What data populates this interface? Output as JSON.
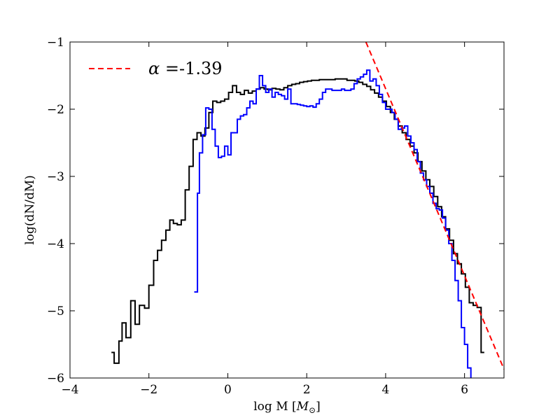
{
  "chart_data": {
    "type": "line",
    "xlabel": "log M [M⊙]",
    "xlabel_plain": "log M [",
    "xlabel_math": "M",
    "xlabel_sub": "⊙",
    "xlabel_close": "]",
    "ylabel": "log(dN/dM)",
    "xlim": [
      -4,
      7
    ],
    "ylim": [
      -6,
      -1
    ],
    "xticks": [
      -4,
      -2,
      0,
      2,
      4,
      6
    ],
    "xtick_labels": [
      "−4",
      "−2",
      "0",
      "2",
      "4",
      "6"
    ],
    "yticks": [
      -6,
      -5,
      -4,
      -3,
      -2,
      -1
    ],
    "ytick_labels": [
      "−6",
      "−5",
      "−4",
      "−3",
      "−2",
      "−1"
    ],
    "grid": false,
    "legend_position": "top-left",
    "legend": [
      {
        "label_symbol": "α",
        "label_value": " =-1.39",
        "style": "dashed",
        "color": "#ff0000"
      }
    ],
    "series": [
      {
        "style": "steps",
        "color": "#000000",
        "points": [
          [
            -2.95,
            -5.62
          ],
          [
            -2.88,
            -5.78
          ],
          [
            -2.76,
            -5.45
          ],
          [
            -2.68,
            -5.18
          ],
          [
            -2.58,
            -5.4
          ],
          [
            -2.46,
            -4.85
          ],
          [
            -2.35,
            -5.2
          ],
          [
            -2.24,
            -4.92
          ],
          [
            -2.11,
            -4.96
          ],
          [
            -2.0,
            -4.62
          ],
          [
            -1.88,
            -4.25
          ],
          [
            -1.78,
            -4.1
          ],
          [
            -1.68,
            -3.95
          ],
          [
            -1.57,
            -3.8
          ],
          [
            -1.47,
            -3.65
          ],
          [
            -1.38,
            -3.7
          ],
          [
            -1.28,
            -3.72
          ],
          [
            -1.18,
            -3.65
          ],
          [
            -1.08,
            -3.2
          ],
          [
            -0.98,
            -2.85
          ],
          [
            -0.88,
            -2.45
          ],
          [
            -0.78,
            -2.35
          ],
          [
            -0.68,
            -2.4
          ],
          [
            -0.58,
            -2.28
          ],
          [
            -0.48,
            -2.05
          ],
          [
            -0.38,
            -1.88
          ],
          [
            -0.28,
            -1.9
          ],
          [
            -0.18,
            -1.88
          ],
          [
            -0.08,
            -1.85
          ],
          [
            0.02,
            -1.75
          ],
          [
            0.12,
            -1.65
          ],
          [
            0.22,
            -1.75
          ],
          [
            0.32,
            -1.78
          ],
          [
            0.42,
            -1.72
          ],
          [
            0.52,
            -1.76
          ],
          [
            0.62,
            -1.73
          ],
          [
            0.72,
            -1.7
          ],
          [
            0.82,
            -1.68
          ],
          [
            0.92,
            -1.7
          ],
          [
            1.02,
            -1.71
          ],
          [
            1.12,
            -1.69
          ],
          [
            1.22,
            -1.7
          ],
          [
            1.32,
            -1.71
          ],
          [
            1.42,
            -1.68
          ],
          [
            1.52,
            -1.65
          ],
          [
            1.62,
            -1.63
          ],
          [
            1.72,
            -1.62
          ],
          [
            1.82,
            -1.6
          ],
          [
            1.92,
            -1.59
          ],
          [
            2.02,
            -1.58
          ],
          [
            2.12,
            -1.57
          ],
          [
            2.22,
            -1.57
          ],
          [
            2.32,
            -1.56
          ],
          [
            2.42,
            -1.56
          ],
          [
            2.52,
            -1.56
          ],
          [
            2.62,
            -1.56
          ],
          [
            2.72,
            -1.55
          ],
          [
            2.82,
            -1.55
          ],
          [
            2.92,
            -1.55
          ],
          [
            3.02,
            -1.57
          ],
          [
            3.12,
            -1.57
          ],
          [
            3.22,
            -1.58
          ],
          [
            3.32,
            -1.6
          ],
          [
            3.42,
            -1.63
          ],
          [
            3.52,
            -1.66
          ],
          [
            3.62,
            -1.71
          ],
          [
            3.72,
            -1.76
          ],
          [
            3.82,
            -1.82
          ],
          [
            3.92,
            -1.88
          ],
          [
            4.02,
            -1.96
          ],
          [
            4.12,
            -2.05
          ],
          [
            4.22,
            -2.15
          ],
          [
            4.32,
            -2.25
          ],
          [
            4.42,
            -2.35
          ],
          [
            4.52,
            -2.45
          ],
          [
            4.62,
            -2.55
          ],
          [
            4.72,
            -2.65
          ],
          [
            4.82,
            -2.78
          ],
          [
            4.92,
            -2.92
          ],
          [
            5.02,
            -3.05
          ],
          [
            5.12,
            -3.15
          ],
          [
            5.22,
            -3.3
          ],
          [
            5.32,
            -3.45
          ],
          [
            5.42,
            -3.6
          ],
          [
            5.52,
            -3.78
          ],
          [
            5.62,
            -3.95
          ],
          [
            5.72,
            -4.15
          ],
          [
            5.82,
            -4.3
          ],
          [
            5.92,
            -4.45
          ],
          [
            6.02,
            -4.65
          ],
          [
            6.12,
            -4.88
          ],
          [
            6.22,
            -4.92
          ],
          [
            6.32,
            -4.95
          ],
          [
            6.42,
            -5.62
          ],
          [
            6.5,
            -5.62
          ]
        ]
      },
      {
        "style": "steps",
        "color": "#0000ff",
        "points": [
          [
            -0.85,
            -4.72
          ],
          [
            -0.77,
            -3.25
          ],
          [
            -0.72,
            -2.65
          ],
          [
            -0.64,
            -2.38
          ],
          [
            -0.56,
            -1.98
          ],
          [
            -0.48,
            -2.0
          ],
          [
            -0.4,
            -2.3
          ],
          [
            -0.32,
            -2.55
          ],
          [
            -0.24,
            -2.72
          ],
          [
            -0.16,
            -2.7
          ],
          [
            -0.08,
            -2.55
          ],
          [
            0.0,
            -2.68
          ],
          [
            0.08,
            -2.35
          ],
          [
            0.16,
            -2.35
          ],
          [
            0.24,
            -2.15
          ],
          [
            0.32,
            -2.1
          ],
          [
            0.4,
            -2.08
          ],
          [
            0.48,
            -1.98
          ],
          [
            0.56,
            -1.88
          ],
          [
            0.64,
            -1.92
          ],
          [
            0.72,
            -1.7
          ],
          [
            0.8,
            -1.5
          ],
          [
            0.88,
            -1.65
          ],
          [
            0.96,
            -1.75
          ],
          [
            1.04,
            -1.7
          ],
          [
            1.12,
            -1.82
          ],
          [
            1.2,
            -1.75
          ],
          [
            1.28,
            -1.78
          ],
          [
            1.36,
            -1.8
          ],
          [
            1.44,
            -1.85
          ],
          [
            1.52,
            -1.7
          ],
          [
            1.6,
            -1.92
          ],
          [
            1.68,
            -1.92
          ],
          [
            1.76,
            -1.93
          ],
          [
            1.84,
            -1.94
          ],
          [
            1.92,
            -1.95
          ],
          [
            2.0,
            -1.96
          ],
          [
            2.08,
            -1.95
          ],
          [
            2.16,
            -1.97
          ],
          [
            2.24,
            -1.92
          ],
          [
            2.32,
            -1.85
          ],
          [
            2.4,
            -1.75
          ],
          [
            2.48,
            -1.7
          ],
          [
            2.56,
            -1.7
          ],
          [
            2.64,
            -1.72
          ],
          [
            2.72,
            -1.72
          ],
          [
            2.8,
            -1.72
          ],
          [
            2.88,
            -1.7
          ],
          [
            2.96,
            -1.72
          ],
          [
            3.04,
            -1.72
          ],
          [
            3.12,
            -1.7
          ],
          [
            3.2,
            -1.62
          ],
          [
            3.28,
            -1.55
          ],
          [
            3.36,
            -1.52
          ],
          [
            3.44,
            -1.48
          ],
          [
            3.52,
            -1.42
          ],
          [
            3.6,
            -1.58
          ],
          [
            3.68,
            -1.55
          ],
          [
            3.76,
            -1.65
          ],
          [
            3.84,
            -1.78
          ],
          [
            3.92,
            -1.9
          ],
          [
            4.0,
            -2.0
          ],
          [
            4.08,
            -2.0
          ],
          [
            4.16,
            -2.05
          ],
          [
            4.24,
            -2.15
          ],
          [
            4.32,
            -2.3
          ],
          [
            4.4,
            -2.28
          ],
          [
            4.48,
            -2.25
          ],
          [
            4.56,
            -2.4
          ],
          [
            4.64,
            -2.5
          ],
          [
            4.72,
            -2.6
          ],
          [
            4.8,
            -2.78
          ],
          [
            4.88,
            -2.95
          ],
          [
            4.96,
            -3.05
          ],
          [
            5.04,
            -3.15
          ],
          [
            5.12,
            -3.25
          ],
          [
            5.2,
            -3.4
          ],
          [
            5.28,
            -3.48
          ],
          [
            5.36,
            -3.5
          ],
          [
            5.44,
            -3.62
          ],
          [
            5.52,
            -3.8
          ],
          [
            5.6,
            -4.0
          ],
          [
            5.68,
            -4.25
          ],
          [
            5.76,
            -4.55
          ],
          [
            5.84,
            -4.85
          ],
          [
            5.92,
            -5.25
          ],
          [
            6.0,
            -5.5
          ],
          [
            6.08,
            -5.85
          ],
          [
            6.16,
            -6.0
          ]
        ]
      }
    ],
    "fit_line": {
      "style": "dashed",
      "color": "#ff0000",
      "x": [
        3.5,
        7.0
      ],
      "y": [
        -1.0,
        -5.87
      ]
    }
  }
}
